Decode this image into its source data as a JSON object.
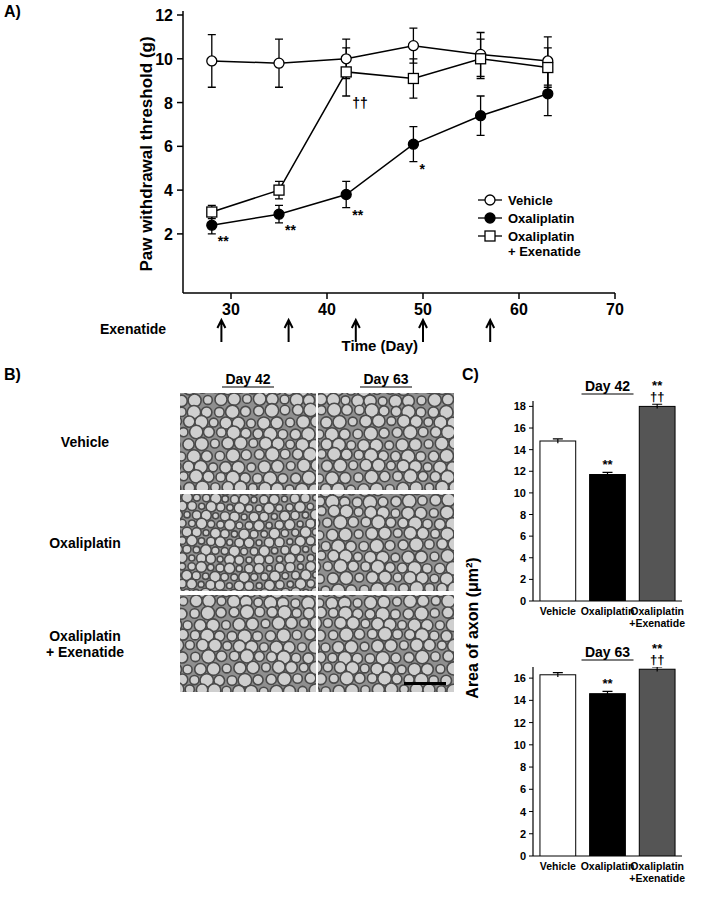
{
  "chart_data": [
    {
      "type": "line",
      "panel": "A)",
      "y_label": "Paw withdrawal threshold (g)",
      "x_label": "Time (Day)",
      "x": [
        28,
        35,
        42,
        49,
        56,
        63
      ],
      "xlim": [
        25,
        70
      ],
      "xticks": [
        30,
        40,
        50,
        60,
        70
      ],
      "ylim": [
        -0.7,
        12
      ],
      "yticks": [
        2,
        4,
        6,
        8,
        10,
        12
      ],
      "legend": "lower right",
      "series": [
        {
          "name": "Vehicle",
          "color": "#000000",
          "marker": "open-circle",
          "values": [
            9.9,
            9.8,
            10.0,
            10.6,
            10.2,
            9.9
          ],
          "errors": [
            1.2,
            1.1,
            0.9,
            0.8,
            1.0,
            1.1
          ]
        },
        {
          "name": "Oxaliplatin",
          "color": "#000000",
          "marker": "filled-circle",
          "values": [
            2.4,
            2.9,
            3.8,
            6.1,
            7.4,
            8.4
          ],
          "errors": [
            0.4,
            0.4,
            0.6,
            0.8,
            0.9,
            1.0
          ]
        },
        {
          "name": "Oxaliplatin\n+ Exenatide",
          "color": "#000000",
          "marker": "open-square",
          "values": [
            3.0,
            4.0,
            9.4,
            9.1,
            10.0,
            9.6
          ],
          "errors": [
            0.3,
            0.4,
            1.1,
            0.9,
            0.9,
            0.9
          ]
        }
      ],
      "annotations": [
        {
          "series": 1,
          "index": 0,
          "text": "**"
        },
        {
          "series": 1,
          "index": 1,
          "text": "**"
        },
        {
          "series": 1,
          "index": 2,
          "text": "**"
        },
        {
          "series": 1,
          "index": 3,
          "text": "*"
        },
        {
          "series": 2,
          "index": 2,
          "text": "††"
        }
      ],
      "dosing": {
        "label": "Exenatide",
        "x": [
          29,
          36,
          43,
          50,
          57
        ]
      }
    },
    {
      "type": "image_grid",
      "panel": "B)",
      "columns": [
        "Day 42",
        "Day 63"
      ],
      "rows": [
        "Vehicle",
        "Oxaliplatin",
        "Oxaliplatin\n+ Exenatide"
      ]
    },
    {
      "type": "bar",
      "panel": "C)",
      "title": "Day 42",
      "y_label": "Area of axon (μm²)",
      "categories": [
        "Vehicle",
        "Oxaliplatin",
        "Oxaliplatin\n+Exenatide"
      ],
      "values": [
        14.8,
        11.7,
        18.0
      ],
      "errors": [
        0.2,
        0.2,
        0.2
      ],
      "colors": [
        "#ffffff",
        "#000000",
        "#555555"
      ],
      "ylim": [
        0,
        18.5
      ],
      "yticks": [
        0,
        2,
        4,
        6,
        8,
        10,
        12,
        14,
        16,
        18
      ],
      "annotations": [
        {
          "index": 1,
          "text": "**"
        },
        {
          "index": 2,
          "text": "††"
        },
        {
          "index": 2,
          "text": "**"
        }
      ]
    },
    {
      "type": "bar",
      "title": "Day 63",
      "categories": [
        "Vehicle",
        "Oxaliplatin",
        "Oxaliplatin\n+Exenatide"
      ],
      "values": [
        16.3,
        14.6,
        16.8
      ],
      "errors": [
        0.2,
        0.2,
        0.2
      ],
      "colors": [
        "#ffffff",
        "#000000",
        "#555555"
      ],
      "ylim": [
        0,
        17
      ],
      "yticks": [
        0,
        2,
        4,
        6,
        8,
        10,
        12,
        14,
        16
      ],
      "annotations": [
        {
          "index": 1,
          "text": "**"
        },
        {
          "index": 2,
          "text": "††"
        },
        {
          "index": 2,
          "text": "**"
        }
      ]
    }
  ]
}
